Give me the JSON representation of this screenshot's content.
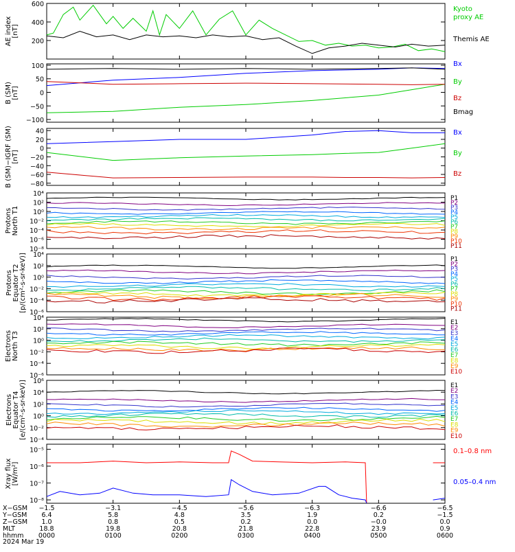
{
  "chart_data": [
    {
      "type": "line",
      "ylabel": [
        "AE index",
        "[nT]"
      ],
      "ylim": [
        0,
        600
      ],
      "yticks": [
        200,
        400,
        600
      ],
      "series": [
        {
          "name": "Kyoto proxy AE",
          "name_lines": [
            "Kyoto",
            "proxy AE"
          ],
          "color": "#00cc00",
          "x": [
            0,
            0.1,
            0.25,
            0.4,
            0.5,
            0.7,
            0.9,
            1.0,
            1.15,
            1.3,
            1.5,
            1.6,
            1.7,
            1.8,
            2.0,
            2.2,
            2.4,
            2.6,
            2.8,
            3.0,
            3.2,
            3.4,
            3.6,
            3.8,
            4.0,
            4.2,
            4.4,
            4.6,
            4.8,
            5.0,
            5.2,
            5.4,
            5.6,
            5.8,
            6.0
          ],
          "values": [
            260,
            280,
            480,
            560,
            420,
            580,
            380,
            460,
            330,
            440,
            300,
            520,
            260,
            480,
            330,
            520,
            260,
            430,
            520,
            260,
            420,
            330,
            260,
            190,
            200,
            150,
            170,
            140,
            150,
            120,
            130,
            160,
            90,
            110,
            80
          ]
        },
        {
          "name": "Themis AE",
          "color": "#000000",
          "x": [
            0,
            0.25,
            0.5,
            0.75,
            1.0,
            1.25,
            1.5,
            1.75,
            2.0,
            2.25,
            2.5,
            2.75,
            3.0,
            3.25,
            3.5,
            3.75,
            4.0,
            4.25,
            4.5,
            4.75,
            5.0,
            5.25,
            5.5,
            5.75,
            6.0
          ],
          "values": [
            250,
            230,
            300,
            240,
            260,
            210,
            260,
            240,
            250,
            230,
            260,
            240,
            250,
            210,
            230,
            140,
            60,
            120,
            140,
            170,
            150,
            130,
            160,
            140,
            150
          ]
        }
      ]
    },
    {
      "type": "line",
      "ylabel": [
        "B (SM)",
        "[nT]"
      ],
      "ylim": [
        -110,
        105
      ],
      "yticks": [
        -100,
        -50,
        0,
        50,
        100
      ],
      "series": [
        {
          "name": "Bx",
          "color": "#0000ff",
          "x": [
            0,
            1,
            2,
            3,
            4,
            5,
            5.5,
            6
          ],
          "values": [
            25,
            45,
            55,
            70,
            80,
            85,
            90,
            88
          ]
        },
        {
          "name": "By",
          "color": "#00cc00",
          "x": [
            0,
            1,
            2,
            3,
            4,
            5,
            5.5,
            6
          ],
          "values": [
            -75,
            -70,
            -55,
            -45,
            -30,
            -10,
            10,
            30
          ]
        },
        {
          "name": "Bz",
          "color": "#cc0000",
          "x": [
            0,
            1,
            2,
            3,
            4,
            5,
            5.5,
            6
          ],
          "values": [
            40,
            30,
            32,
            34,
            32,
            30,
            28,
            30
          ]
        },
        {
          "name": "Bmag",
          "color": "#000000",
          "x": [
            0,
            1,
            2,
            3,
            4,
            5,
            5.5,
            6
          ],
          "values": [
            85,
            88,
            85,
            88,
            85,
            88,
            90,
            85
          ]
        }
      ]
    },
    {
      "type": "line",
      "ylabel": [
        "B (SM)−IGRF (SM)",
        "[nT]"
      ],
      "ylim": [
        -85,
        45
      ],
      "yticks": [
        -80,
        -60,
        -40,
        -20,
        0,
        20,
        40
      ],
      "series": [
        {
          "name": "Bx",
          "color": "#0000ff",
          "x": [
            0,
            1,
            2,
            3,
            4,
            4.5,
            5,
            5.5,
            6
          ],
          "values": [
            10,
            15,
            20,
            20,
            30,
            38,
            40,
            35,
            35
          ]
        },
        {
          "name": "By",
          "color": "#00cc00",
          "x": [
            0,
            1,
            2,
            3,
            4,
            4.5,
            5,
            5.5,
            6
          ],
          "values": [
            -10,
            -28,
            -22,
            -18,
            -15,
            -12,
            -10,
            0,
            10
          ]
        },
        {
          "name": "Bz",
          "color": "#cc0000",
          "x": [
            0,
            1,
            2,
            3,
            4,
            4.5,
            5,
            5.5,
            6
          ],
          "values": [
            -55,
            -68,
            -67,
            -66,
            -66,
            -67,
            -67,
            -68,
            -67
          ]
        }
      ]
    },
    {
      "type": "line",
      "log": true,
      "ylabel": [
        "Protons",
        "North T1"
      ],
      "ylim": [
        -8,
        4
      ],
      "yticks": [
        -8,
        -6,
        -4,
        -2,
        0,
        2,
        4
      ],
      "tick_labels": [
        "10⁻⁸",
        "10⁻⁶",
        "10⁻⁴",
        "10⁻²",
        "10⁰",
        "10²",
        "10⁴"
      ],
      "channels": [
        {
          "name": "P1",
          "color": "#000000",
          "level": 2.8
        },
        {
          "name": "P2",
          "color": "#800080",
          "level": 1.6
        },
        {
          "name": "P3",
          "color": "#3333cc",
          "level": 0.6
        },
        {
          "name": "P4",
          "color": "#0066ff",
          "level": -0.3
        },
        {
          "name": "P5",
          "color": "#00aadd",
          "level": -1.0
        },
        {
          "name": "P6",
          "color": "#00bbaa",
          "level": -1.7
        },
        {
          "name": "P7",
          "color": "#22cc22",
          "level": -2.4
        },
        {
          "name": "P8",
          "color": "#dddd00",
          "level": -3.0
        },
        {
          "name": "P9",
          "color": "#ff8800",
          "level": -3.6
        },
        {
          "name": "P10",
          "color": "#ee3300",
          "level": -4.4
        },
        {
          "name": "P11",
          "color": "#aa0000",
          "level": -5.5
        }
      ]
    },
    {
      "type": "line",
      "log": true,
      "ylabel": [
        "Protons",
        "Equator T2",
        "[p/(cm²-s-sr-keV)]"
      ],
      "ylim": [
        -6,
        4
      ],
      "yticks": [
        -6,
        -4,
        -2,
        0,
        2,
        4
      ],
      "tick_labels": [
        "10⁻⁶",
        "10⁻⁴",
        "10⁻²",
        "10⁰",
        "10²",
        "10⁴"
      ],
      "channels": [
        {
          "name": "P1",
          "color": "#000000",
          "level": 1.8
        },
        {
          "name": "P2",
          "color": "#800080",
          "level": 0.9
        },
        {
          "name": "P3",
          "color": "#3333cc",
          "level": 0.0
        },
        {
          "name": "P4",
          "color": "#0066ff",
          "level": -0.8
        },
        {
          "name": "P5",
          "color": "#00aadd",
          "level": -1.4
        },
        {
          "name": "P6",
          "color": "#00bbaa",
          "level": -2.0
        },
        {
          "name": "P7",
          "color": "#22cc22",
          "level": -2.6
        },
        {
          "name": "P8",
          "color": "#dddd00",
          "level": -3.0
        },
        {
          "name": "P9",
          "color": "#ff8800",
          "level": -3.3
        },
        {
          "name": "P10",
          "color": "#ee3300",
          "level": -3.6
        },
        {
          "name": "P11",
          "color": "#aa0000",
          "level": -4.0
        }
      ]
    },
    {
      "type": "line",
      "log": true,
      "ylabel": [
        "Electrons",
        "North T3"
      ],
      "ylim": [
        -6,
        4
      ],
      "yticks": [
        -6,
        -4,
        -2,
        0,
        2,
        4
      ],
      "tick_labels": [
        "10⁻⁶",
        "10⁻⁴",
        "10⁻²",
        "10⁰",
        "10²",
        "10⁴"
      ],
      "channels": [
        {
          "name": "E1",
          "color": "#000000",
          "level": 3.5
        },
        {
          "name": "E2",
          "color": "#800080",
          "level": 2.5
        },
        {
          "name": "E3",
          "color": "#3333cc",
          "level": 1.8
        },
        {
          "name": "E4",
          "color": "#0066ff",
          "level": 1.2
        },
        {
          "name": "E5",
          "color": "#00aadd",
          "level": 0.6
        },
        {
          "name": "E6",
          "color": "#00bbaa",
          "level": 0.0
        },
        {
          "name": "E7",
          "color": "#22cc22",
          "level": -0.6
        },
        {
          "name": "E8",
          "color": "#dddd00",
          "level": -1.1
        },
        {
          "name": "E9",
          "color": "#ff8800",
          "level": -1.5
        },
        {
          "name": "E10",
          "color": "#cc0000",
          "level": -1.8
        }
      ]
    },
    {
      "type": "line",
      "log": true,
      "ylabel": [
        "Electrons",
        "Equator T4",
        "[e/(cm²-s-sr-keV)]"
      ],
      "ylim": [
        -4,
        6
      ],
      "yticks": [
        -4,
        -2,
        0,
        2,
        4,
        6
      ],
      "tick_labels": [
        "10⁻⁴",
        "10⁻²",
        "10⁰",
        "10²",
        "10⁴",
        "10⁶"
      ],
      "channels": [
        {
          "name": "E1",
          "color": "#000000",
          "level": 4.0
        },
        {
          "name": "E2",
          "color": "#800080",
          "level": 2.6
        },
        {
          "name": "E3",
          "color": "#3333cc",
          "level": 1.8
        },
        {
          "name": "E4",
          "color": "#0066ff",
          "level": 1.1
        },
        {
          "name": "E5",
          "color": "#00aadd",
          "level": 0.6
        },
        {
          "name": "E6",
          "color": "#00bbaa",
          "level": 0.1
        },
        {
          "name": "E7",
          "color": "#22cc22",
          "level": -0.5
        },
        {
          "name": "E8",
          "color": "#dddd00",
          "level": -1.0
        },
        {
          "name": "E9",
          "color": "#ff8800",
          "level": -1.5
        },
        {
          "name": "E10",
          "color": "#cc0000",
          "level": -2.0
        }
      ]
    },
    {
      "type": "line",
      "log": true,
      "ylabel": [
        "Xray flux",
        "[W/m²]"
      ],
      "ylim": [
        -8.2,
        -4.7
      ],
      "yticks": [
        -8,
        -7,
        -6,
        -5
      ],
      "tick_labels": [
        "10⁻⁸",
        "10⁻⁷",
        "10⁻⁶",
        "10⁻⁵"
      ],
      "series": [
        {
          "name": "0.1–0.8 nm",
          "color": "#ff0000",
          "x": [
            0,
            0.5,
            1.0,
            1.5,
            2.0,
            2.5,
            2.74,
            2.78,
            2.9,
            3.1,
            3.5,
            4.0,
            4.5,
            4.8,
            4.82,
            5.8,
            5.82,
            6.0
          ],
          "values": [
            -5.8,
            -5.8,
            -5.7,
            -5.8,
            -5.75,
            -5.8,
            -5.8,
            -5.1,
            -5.3,
            -5.7,
            -5.75,
            -5.8,
            -5.75,
            -5.8,
            -8.2,
            null,
            -5.8,
            -5.8
          ]
        },
        {
          "name": "0.05–0.4 nm",
          "color": "#0000ff",
          "x": [
            0,
            0.2,
            0.5,
            0.8,
            1.0,
            1.3,
            1.6,
            2.0,
            2.4,
            2.74,
            2.78,
            2.9,
            3.1,
            3.4,
            3.8,
            4.1,
            4.2,
            4.4,
            4.6,
            4.8,
            4.82,
            5.8,
            5.82,
            6.0
          ],
          "values": [
            -7.8,
            -7.5,
            -7.7,
            -7.6,
            -7.3,
            -7.6,
            -7.7,
            -7.7,
            -7.8,
            -7.7,
            -6.8,
            -7.1,
            -7.5,
            -7.7,
            -7.6,
            -7.2,
            -7.2,
            -7.7,
            -7.9,
            -8.0,
            -8.2,
            null,
            -8.0,
            -7.9
          ]
        }
      ]
    }
  ],
  "axis": {
    "rows": [
      {
        "label": "X−GSM",
        "values": [
          "−1.5",
          "−3.1",
          "−4.5",
          "−5.6",
          "−6.3",
          "−6.6",
          "−6.5"
        ]
      },
      {
        "label": "Y−GSM",
        "values": [
          "6.4",
          "5.8",
          "4.8",
          "3.5",
          "1.9",
          "0.2",
          "−1.5"
        ]
      },
      {
        "label": "Z−GSM",
        "values": [
          "1.0",
          "0.8",
          "0.5",
          "0.2",
          "0.0",
          "−0.0",
          "0.0"
        ]
      },
      {
        "label": "MLT",
        "values": [
          "18.8",
          "19.8",
          "20.8",
          "21.8",
          "22.8",
          "23.9",
          "0.9"
        ]
      },
      {
        "label": "hhmm",
        "values": [
          "0000",
          "0100",
          "0200",
          "0300",
          "0400",
          "0500",
          "0600"
        ]
      }
    ],
    "date": "2024 Mar 19"
  }
}
